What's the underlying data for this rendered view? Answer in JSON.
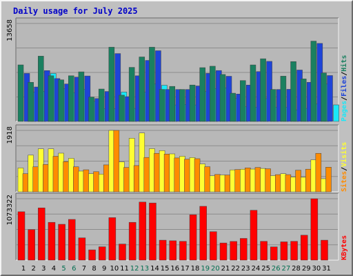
{
  "chart_data": [
    {
      "type": "bar",
      "title": "Daily usage for July 2025",
      "categories": [
        "1",
        "2",
        "3",
        "4",
        "5",
        "6",
        "7",
        "8",
        "9",
        "10",
        "11",
        "12",
        "13",
        "14",
        "15",
        "16",
        "17",
        "18",
        "19",
        "20",
        "21",
        "22",
        "23",
        "24",
        "25",
        "26",
        "27",
        "28",
        "29",
        "30",
        "31"
      ],
      "weekend_days": [
        "5",
        "6",
        "12",
        "13",
        "19",
        "20",
        "26",
        "27"
      ],
      "y_tick_label": "13658",
      "ylim": [
        0,
        13658
      ],
      "grid": true,
      "series": [
        {
          "name": "Hits",
          "color": "#1a8060",
          "values": [
            7885,
            5460,
            9103,
            6368,
            5800,
            6368,
            6915,
            3400,
            4520,
            10349,
            3663,
            7540,
            8991,
            10349,
            4463,
            4890,
            4463,
            5080,
            7500,
            7700,
            6550,
            3940,
            5700,
            7880,
            8740,
            4463,
            6315,
            8345,
            5930,
            11200,
            6750
          ]
        },
        {
          "name": "Files",
          "color": "#1e44d8",
          "values": [
            6695,
            4805,
            7090,
            5980,
            5230,
            6180,
            6340,
            3200,
            4180,
            9465,
            3460,
            6365,
            8510,
            9860,
            4460,
            4455,
            4460,
            4950,
            6700,
            7100,
            6300,
            3820,
            5070,
            6950,
            8375,
            4460,
            4480,
            7170,
            5460,
            10880,
            6400
          ]
        },
        {
          "name": "Pages",
          "color": "#19e8f8",
          "values": [
            4100,
            4200,
            6690,
            4580,
            4015,
            4450,
            2815,
            1780,
            1770,
            4100,
            1820,
            4070,
            5220,
            5050,
            2300,
            2380,
            2300,
            4170,
            4580,
            4690,
            3240,
            2050,
            2000,
            3180,
            2000,
            2000,
            1620,
            1820,
            2445,
            5220,
            2310
          ]
        }
      ],
      "legend": [
        "Pages",
        "/",
        "Files",
        "/",
        "Hits"
      ],
      "x_label_color": "#000000",
      "x_label_weekend_color": "#006e50"
    },
    {
      "type": "bar",
      "categories": [
        "1",
        "2",
        "3",
        "4",
        "5",
        "6",
        "7",
        "8",
        "9",
        "10",
        "11",
        "12",
        "13",
        "14",
        "15",
        "16",
        "17",
        "18",
        "19",
        "20",
        "21",
        "22",
        "23",
        "24",
        "25",
        "26",
        "27",
        "28",
        "29",
        "30",
        "31"
      ],
      "y_tick_label": "1918",
      "ylim": [
        0,
        1918
      ],
      "grid": true,
      "series": [
        {
          "name": "Visits",
          "color": "#ffff33",
          "values": [
            746,
            1146,
            1344,
            1344,
            1207,
            1047,
            647,
            567,
            553,
            1918,
            935,
            1675,
            1838,
            1348,
            1288,
            1185,
            1112,
            1071,
            870,
            500,
            525,
            685,
            706,
            710,
            730,
            505,
            566,
            460,
            455,
            1000,
            410
          ]
        },
        {
          "name": "Sites",
          "color": "#ff8c00",
          "values": [
            566,
            781,
            854,
            1110,
            943,
            781,
            689,
            629,
            842,
            1918,
            762,
            820,
            1074,
            1202,
            1180,
            1058,
            1018,
            1035,
            785,
            543,
            526,
            697,
            748,
            762,
            720,
            537,
            537,
            676,
            707,
            1202,
            770
          ]
        }
      ],
      "legend": [
        "Sites",
        "/",
        "Visits"
      ]
    },
    {
      "type": "bar",
      "categories": [
        "1",
        "2",
        "3",
        "4",
        "5",
        "6",
        "7",
        "8",
        "9",
        "10",
        "11",
        "12",
        "13",
        "14",
        "15",
        "16",
        "17",
        "18",
        "19",
        "20",
        "21",
        "22",
        "23",
        "24",
        "25",
        "26",
        "27",
        "28",
        "29",
        "30",
        "31"
      ],
      "y_tick_label": "1073322",
      "ylim": [
        0,
        1073322
      ],
      "grid": true,
      "series": [
        {
          "name": "KBytes",
          "color": "#ff0000",
          "values": [
            846000,
            535000,
            913000,
            661000,
            627000,
            712000,
            390000,
            180000,
            234000,
            743000,
            282000,
            661000,
            1015000,
            999000,
            349000,
            339000,
            329000,
            794000,
            941000,
            498000,
            300000,
            327000,
            380000,
            872000,
            329000,
            232000,
            320000,
            329000,
            436000,
            1073322,
            349000
          ]
        }
      ],
      "legend": [
        "KBytes"
      ]
    }
  ]
}
